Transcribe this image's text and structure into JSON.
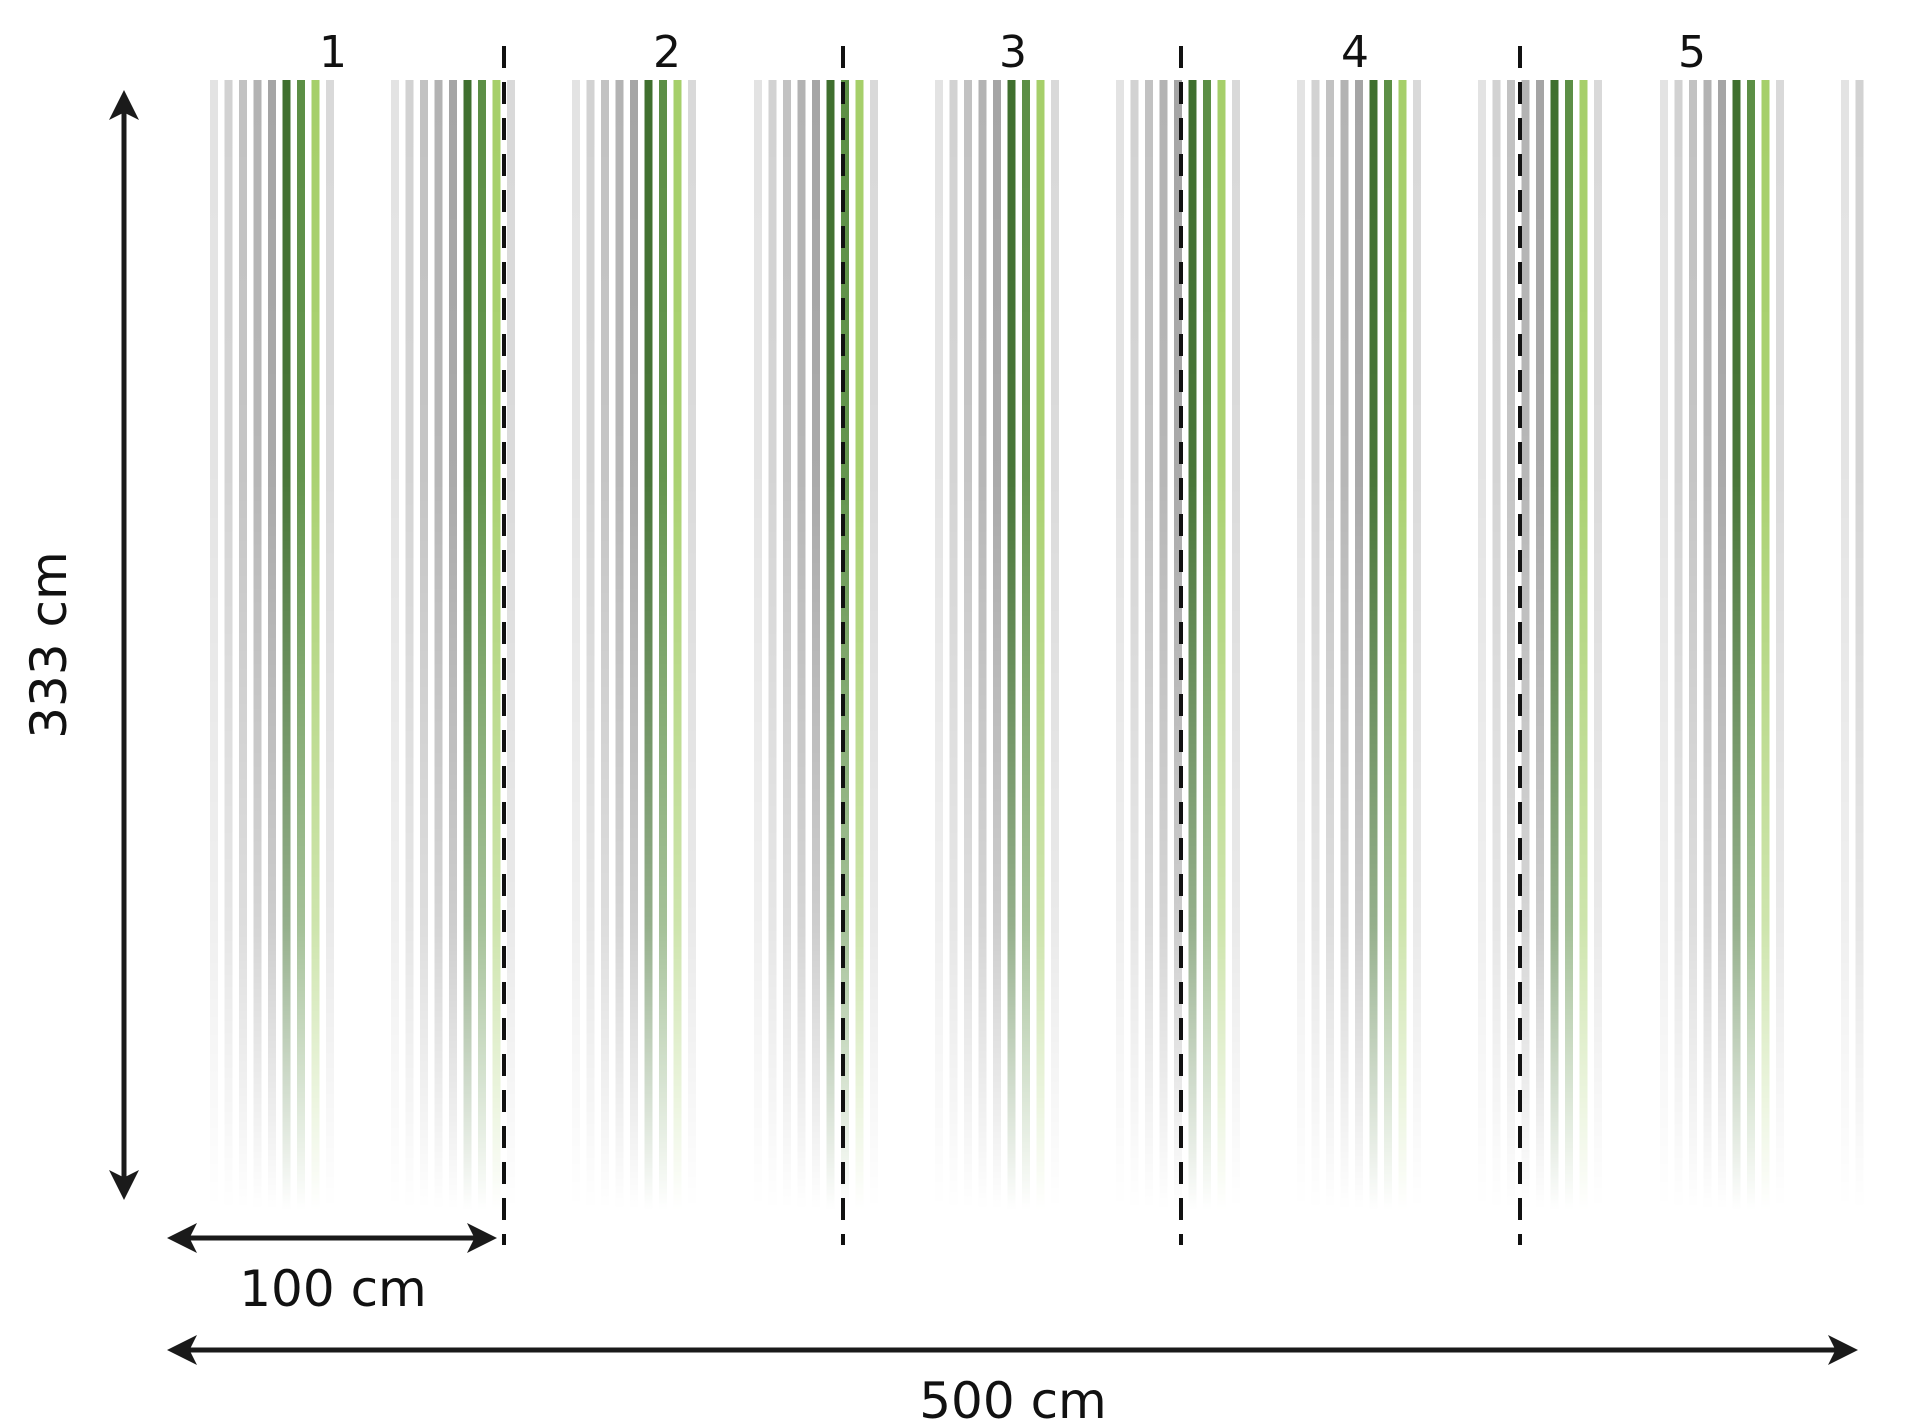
{
  "dimensions": {
    "height_label": "333 cm",
    "panel_width_label": "100 cm",
    "total_width_label": "500 cm"
  },
  "panels": [
    {
      "number": "1"
    },
    {
      "number": "2"
    },
    {
      "number": "3"
    },
    {
      "number": "4"
    },
    {
      "number": "5"
    }
  ],
  "stripe_pattern": [
    {
      "color": "#e3e3e3"
    },
    {
      "color": "#d2d2d2"
    },
    {
      "color": "#c2c2c2"
    },
    {
      "color": "#b3b3b3"
    },
    {
      "color": "#a5a5a5"
    },
    {
      "color": "#3f6f2e"
    },
    {
      "color": "#5c8f45"
    },
    {
      "color": "#a6cf6a"
    },
    {
      "color": "#d9d9d9"
    }
  ],
  "colors": {
    "background": "#ffffff",
    "seam_line": "#111111",
    "arrow": "#1a1a1a",
    "text": "#111111"
  }
}
